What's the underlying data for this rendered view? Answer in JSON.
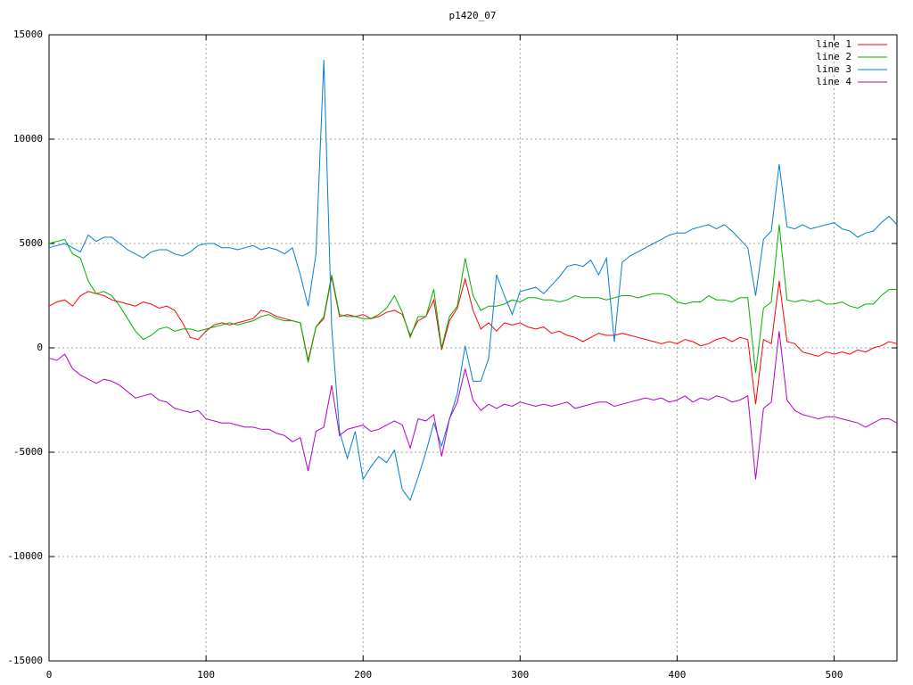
{
  "chart_data": {
    "type": "line",
    "title": "p1420_07",
    "x": [
      0,
      5,
      10,
      15,
      20,
      25,
      30,
      35,
      40,
      45,
      50,
      55,
      60,
      65,
      70,
      75,
      80,
      85,
      90,
      95,
      100,
      105,
      110,
      115,
      120,
      125,
      130,
      135,
      140,
      145,
      150,
      155,
      160,
      165,
      170,
      175,
      180,
      185,
      190,
      195,
      200,
      205,
      210,
      215,
      220,
      225,
      230,
      235,
      240,
      245,
      250,
      255,
      260,
      265,
      270,
      275,
      280,
      285,
      290,
      295,
      300,
      305,
      310,
      315,
      320,
      325,
      330,
      335,
      340,
      345,
      350,
      355,
      360,
      365,
      370,
      375,
      380,
      385,
      390,
      395,
      400,
      405,
      410,
      415,
      420,
      425,
      430,
      435,
      440,
      445,
      450,
      455,
      460,
      465,
      470,
      475,
      480,
      485,
      490,
      495,
      500,
      505,
      510,
      515,
      520,
      525,
      530,
      535,
      540
    ],
    "series": [
      {
        "name": "line 1",
        "color": "#ff0000",
        "values": [
          2000,
          2200,
          2300,
          2000,
          2500,
          2700,
          2600,
          2500,
          2300,
          2200,
          2100,
          2000,
          2200,
          2100,
          1900,
          2000,
          1800,
          1200,
          500,
          400,
          800,
          1100,
          1200,
          1100,
          1200,
          1300,
          1400,
          1800,
          1700,
          1500,
          1400,
          1300,
          1200,
          -600,
          1000,
          1400,
          3400,
          1500,
          1600,
          1500,
          1600,
          1400,
          1500,
          1700,
          1800,
          1600,
          600,
          1300,
          1500,
          2300,
          -100,
          1300,
          1900,
          3300,
          1800,
          900,
          1200,
          800,
          1200,
          1100,
          1200,
          1000,
          900,
          1000,
          700,
          800,
          600,
          500,
          300,
          500,
          700,
          600,
          600,
          700,
          600,
          500,
          400,
          300,
          200,
          300,
          200,
          400,
          300,
          100,
          200,
          400,
          500,
          300,
          500,
          400,
          -2700,
          400,
          200,
          3200,
          300,
          200,
          -200,
          -300,
          -400,
          -200,
          -300,
          -200,
          -300,
          -100,
          -200,
          0,
          100,
          300,
          200
        ]
      },
      {
        "name": "line 2",
        "color": "#00b000",
        "values": [
          5000,
          5100,
          5200,
          4500,
          4300,
          3200,
          2600,
          2700,
          2500,
          2000,
          1400,
          800,
          400,
          600,
          900,
          1000,
          800,
          900,
          900,
          800,
          900,
          1000,
          1100,
          1200,
          1100,
          1200,
          1300,
          1500,
          1600,
          1400,
          1300,
          1300,
          1200,
          -700,
          1000,
          1500,
          3500,
          1600,
          1500,
          1500,
          1400,
          1400,
          1600,
          1900,
          2500,
          1700,
          500,
          1500,
          1500,
          2800,
          0,
          1500,
          2000,
          4300,
          2500,
          1800,
          2000,
          2000,
          2100,
          2300,
          2200,
          2400,
          2400,
          2300,
          2300,
          2200,
          2300,
          2500,
          2400,
          2400,
          2400,
          2300,
          2400,
          2500,
          2500,
          2400,
          2500,
          2600,
          2600,
          2500,
          2200,
          2100,
          2200,
          2200,
          2500,
          2300,
          2300,
          2200,
          2400,
          2400,
          -1200,
          1900,
          2200,
          5900,
          2300,
          2200,
          2300,
          2200,
          2300,
          2100,
          2100,
          2200,
          2000,
          1900,
          2100,
          2100,
          2500,
          2800,
          2800
        ]
      },
      {
        "name": "line 3",
        "color": "#0080d0",
        "values": [
          4800,
          4900,
          5000,
          4800,
          4600,
          5400,
          5100,
          5300,
          5300,
          5000,
          4700,
          4500,
          4300,
          4600,
          4700,
          4700,
          4500,
          4400,
          4600,
          4900,
          5000,
          5000,
          4800,
          4800,
          4700,
          4800,
          4900,
          4700,
          4800,
          4700,
          4500,
          4800,
          3500,
          2000,
          4500,
          13800,
          1000,
          -4000,
          -5300,
          -4000,
          -6300,
          -5700,
          -5200,
          -5500,
          -4900,
          -6800,
          -7300,
          -6200,
          -5000,
          -3600,
          -4700,
          -3400,
          -2200,
          100,
          -1600,
          -1600,
          -500,
          3500,
          2500,
          1600,
          2700,
          2800,
          2900,
          2600,
          3000,
          3400,
          3900,
          4000,
          3900,
          4200,
          3500,
          4300,
          300,
          4100,
          4400,
          4600,
          4800,
          5000,
          5200,
          5400,
          5500,
          5500,
          5700,
          5800,
          5900,
          5700,
          5900,
          5600,
          5200,
          4800,
          2500,
          5200,
          5600,
          8800,
          5800,
          5700,
          5900,
          5700,
          5800,
          5900,
          6000,
          5700,
          5600,
          5300,
          5500,
          5600,
          6000,
          6300,
          5900
        ]
      },
      {
        "name": "line 4",
        "color": "#b000d0",
        "values": [
          -500,
          -600,
          -300,
          -1000,
          -1300,
          -1500,
          -1700,
          -1500,
          -1600,
          -1800,
          -2100,
          -2400,
          -2300,
          -2200,
          -2500,
          -2600,
          -2900,
          -3000,
          -3100,
          -3000,
          -3400,
          -3500,
          -3600,
          -3600,
          -3700,
          -3800,
          -3800,
          -3900,
          -3900,
          -4100,
          -4200,
          -4500,
          -4300,
          -5900,
          -4000,
          -3800,
          -1800,
          -4200,
          -3900,
          -3800,
          -3700,
          -4000,
          -3900,
          -3700,
          -3500,
          -3700,
          -4800,
          -3400,
          -3500,
          -3200,
          -5200,
          -3400,
          -2600,
          -1000,
          -2500,
          -3000,
          -2700,
          -2900,
          -2700,
          -2800,
          -2600,
          -2700,
          -2800,
          -2700,
          -2800,
          -2700,
          -2600,
          -2900,
          -2800,
          -2700,
          -2600,
          -2600,
          -2800,
          -2700,
          -2600,
          -2500,
          -2400,
          -2500,
          -2400,
          -2600,
          -2500,
          -2300,
          -2600,
          -2400,
          -2500,
          -2300,
          -2400,
          -2600,
          -2500,
          -2300,
          -6300,
          -2900,
          -2600,
          800,
          -2500,
          -3000,
          -3200,
          -3300,
          -3400,
          -3300,
          -3300,
          -3400,
          -3500,
          -3600,
          -3800,
          -3600,
          -3400,
          -3400,
          -3600
        ]
      }
    ],
    "xlim": [
      0,
      540
    ],
    "xticks": [
      0,
      100,
      200,
      300,
      400,
      500
    ],
    "ylim": [
      -15000,
      15000
    ],
    "yticks": [
      -15000,
      -10000,
      -5000,
      0,
      5000,
      10000,
      15000
    ],
    "grid": true,
    "legend": "upper right"
  }
}
